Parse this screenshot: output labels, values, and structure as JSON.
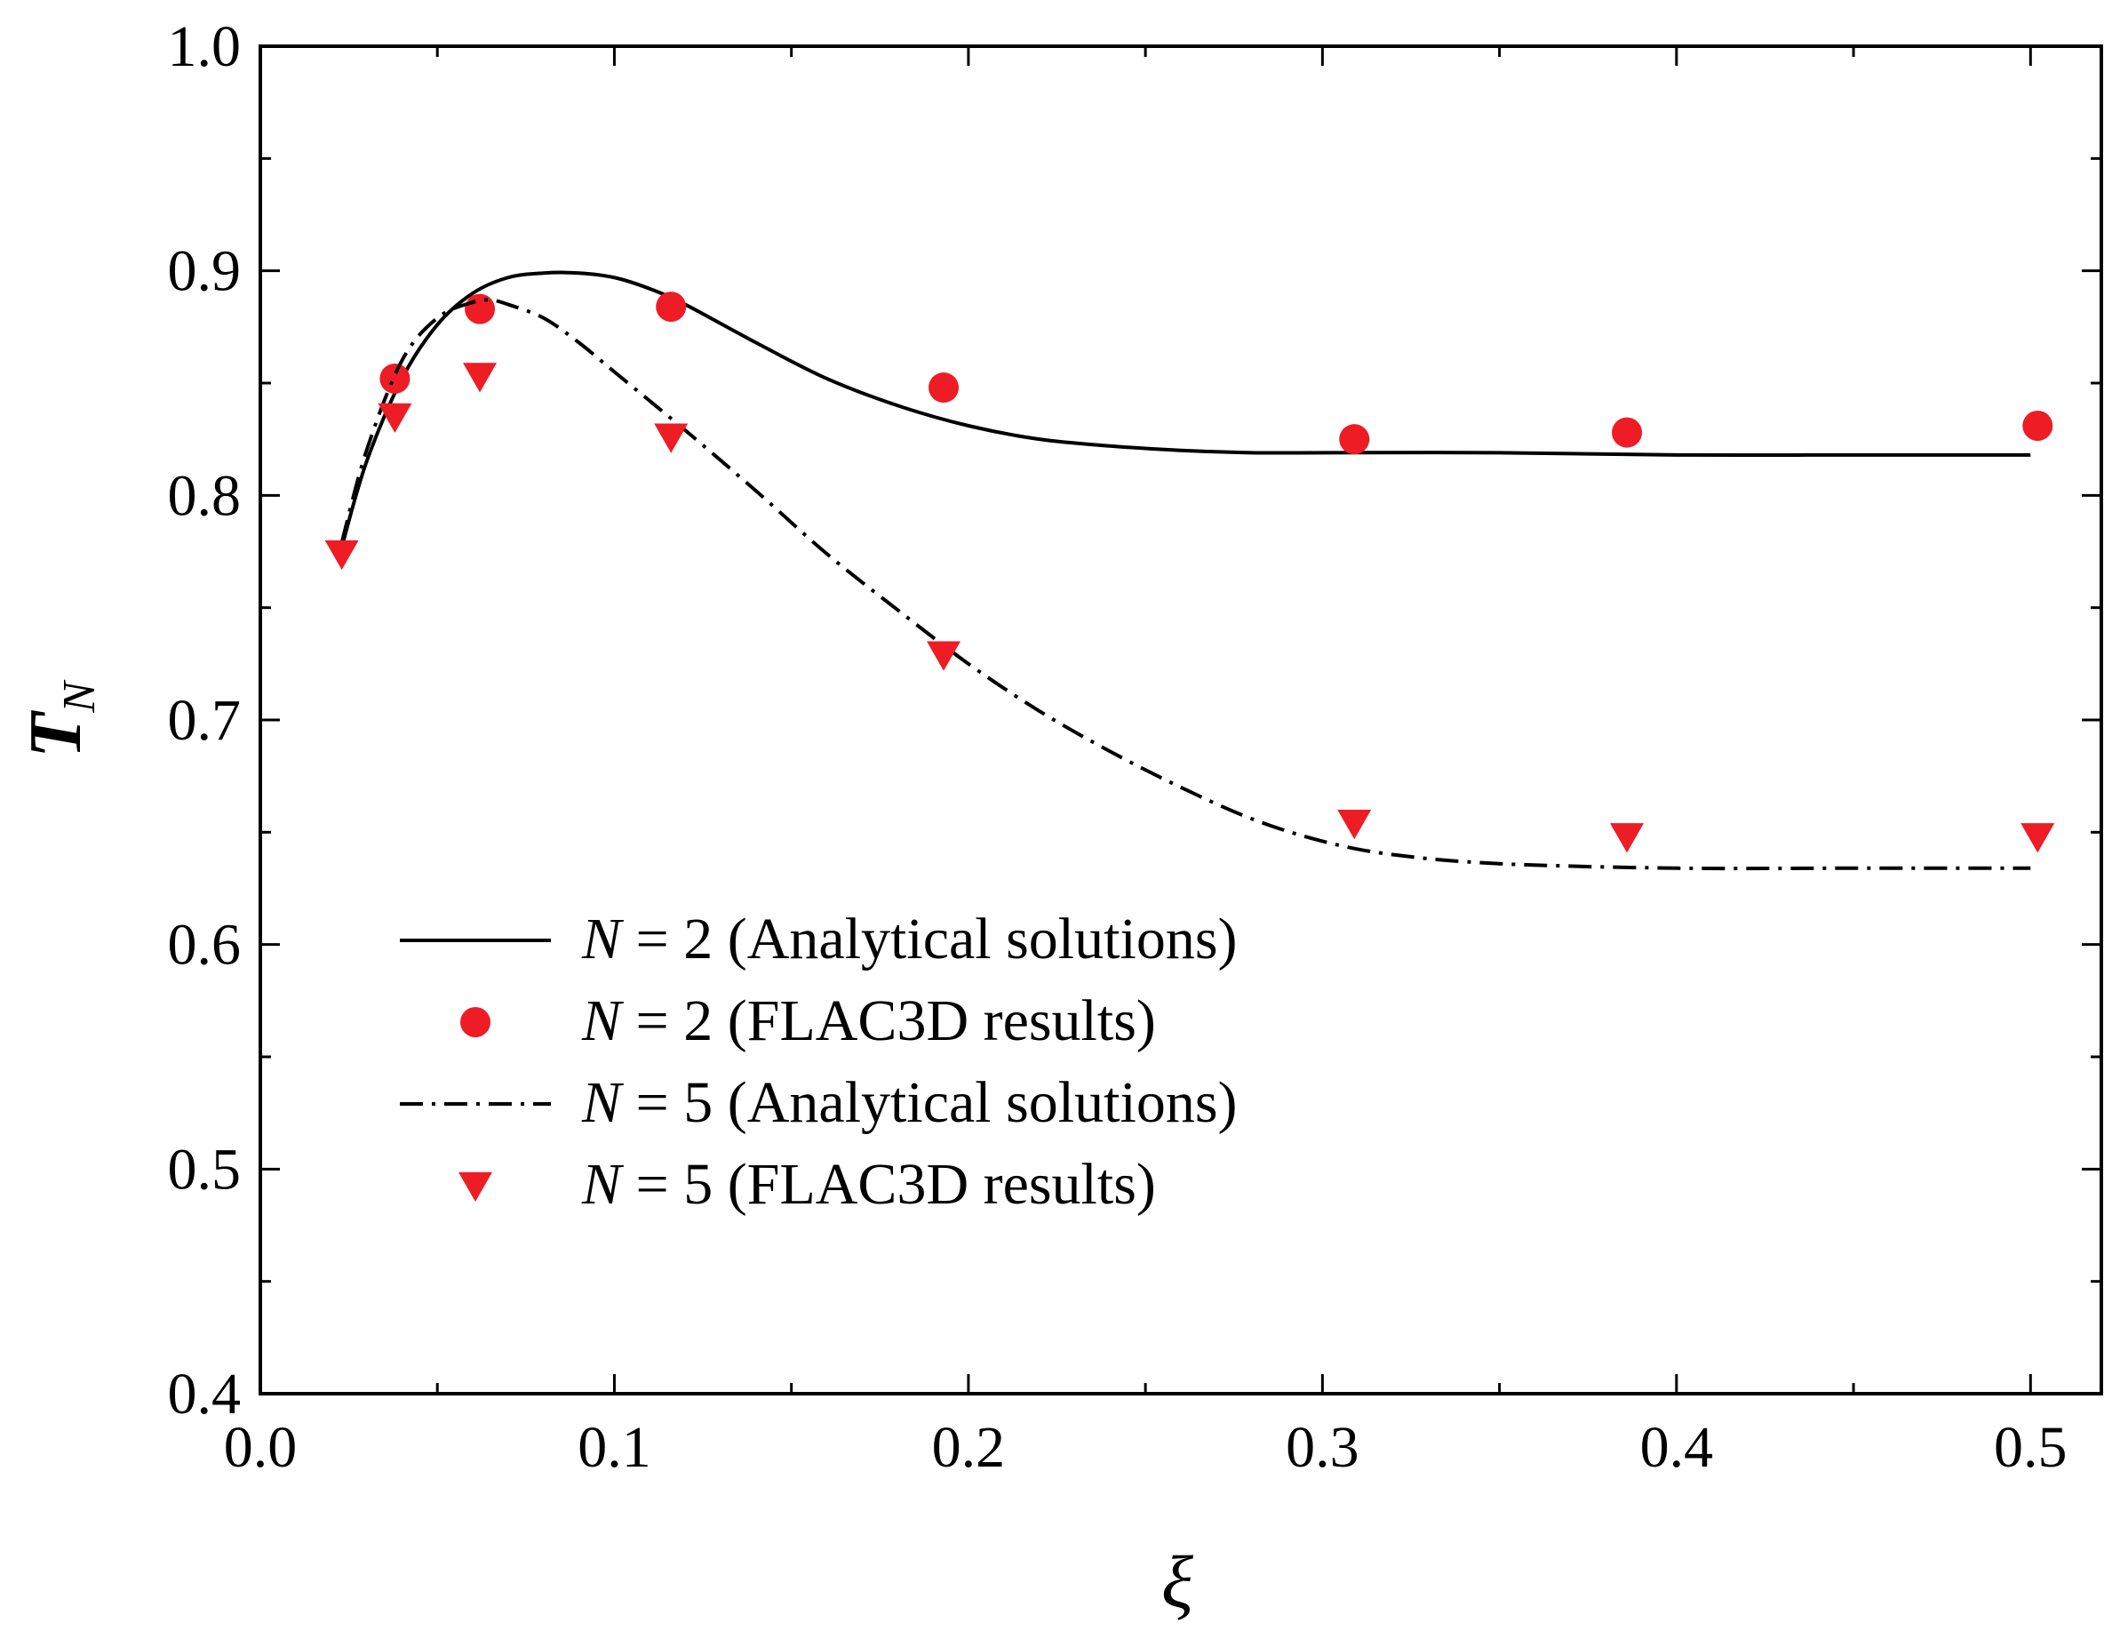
{
  "chart_data": {
    "type": "line",
    "title": "",
    "xlabel": "ξ",
    "ylabel": {
      "main": "T",
      "subscript": "N"
    },
    "xlim": [
      0.0,
      0.52
    ],
    "ylim": [
      0.4,
      1.0
    ],
    "x_ticks": [
      0.0,
      0.1,
      0.2,
      0.3,
      0.4,
      0.5
    ],
    "x_tick_labels": [
      "0.0",
      "0.1",
      "0.2",
      "0.3",
      "0.4",
      "0.5"
    ],
    "y_ticks": [
      0.4,
      0.5,
      0.6,
      0.7,
      0.8,
      0.9,
      1.0
    ],
    "y_tick_labels": [
      "0.4",
      "0.5",
      "0.6",
      "0.7",
      "0.8",
      "0.9",
      "1.0"
    ],
    "grid": false,
    "legend_position": "lower-left",
    "series": [
      {
        "name": "N = 2 (Analytical solutions)",
        "legend": {
          "italic": "N",
          "rest": " = 2 (Analytical solutions)"
        },
        "kind": "line",
        "dash": "solid",
        "color": "#000000",
        "x": [
          0.023,
          0.03,
          0.04,
          0.05,
          0.06,
          0.07,
          0.08,
          0.09,
          0.1,
          0.11,
          0.12,
          0.14,
          0.16,
          0.18,
          0.2,
          0.22,
          0.24,
          0.26,
          0.28,
          0.3,
          0.35,
          0.4,
          0.45,
          0.5
        ],
        "y": [
          0.777,
          0.815,
          0.852,
          0.876,
          0.89,
          0.897,
          0.899,
          0.899,
          0.897,
          0.892,
          0.885,
          0.868,
          0.852,
          0.84,
          0.831,
          0.825,
          0.822,
          0.82,
          0.819,
          0.819,
          0.819,
          0.818,
          0.818,
          0.818
        ]
      },
      {
        "name": "N = 2 (FLAC3D results)",
        "legend": {
          "italic": "N",
          "rest": " = 2 (FLAC3D results)"
        },
        "kind": "scatter",
        "marker": "circle",
        "color": "#ee1c25",
        "x": [
          0.038,
          0.062,
          0.116,
          0.193,
          0.309,
          0.386,
          0.502
        ],
        "y": [
          0.852,
          0.883,
          0.884,
          0.848,
          0.825,
          0.828,
          0.831
        ]
      },
      {
        "name": "N = 5 (Analytical solutions)",
        "legend": {
          "italic": "N",
          "rest": " = 5 (Analytical solutions)"
        },
        "kind": "line",
        "dash": "dashdot",
        "color": "#000000",
        "x": [
          0.023,
          0.03,
          0.04,
          0.05,
          0.06,
          0.065,
          0.07,
          0.08,
          0.09,
          0.1,
          0.12,
          0.14,
          0.16,
          0.18,
          0.2,
          0.22,
          0.24,
          0.26,
          0.28,
          0.3,
          0.32,
          0.35,
          0.4,
          0.45,
          0.5
        ],
        "y": [
          0.779,
          0.82,
          0.86,
          0.879,
          0.886,
          0.887,
          0.885,
          0.879,
          0.868,
          0.855,
          0.829,
          0.802,
          0.774,
          0.749,
          0.725,
          0.704,
          0.686,
          0.67,
          0.656,
          0.646,
          0.64,
          0.636,
          0.634,
          0.634,
          0.634
        ]
      },
      {
        "name": "N = 5 (FLAC3D results)",
        "legend": {
          "italic": "N",
          "rest": " = 5 (FLAC3D results)"
        },
        "kind": "scatter",
        "marker": "triangle-down",
        "color": "#ee1c25",
        "x": [
          0.023,
          0.038,
          0.062,
          0.116,
          0.193,
          0.309,
          0.386,
          0.502
        ],
        "y": [
          0.774,
          0.835,
          0.853,
          0.826,
          0.729,
          0.654,
          0.648,
          0.648
        ]
      }
    ]
  }
}
